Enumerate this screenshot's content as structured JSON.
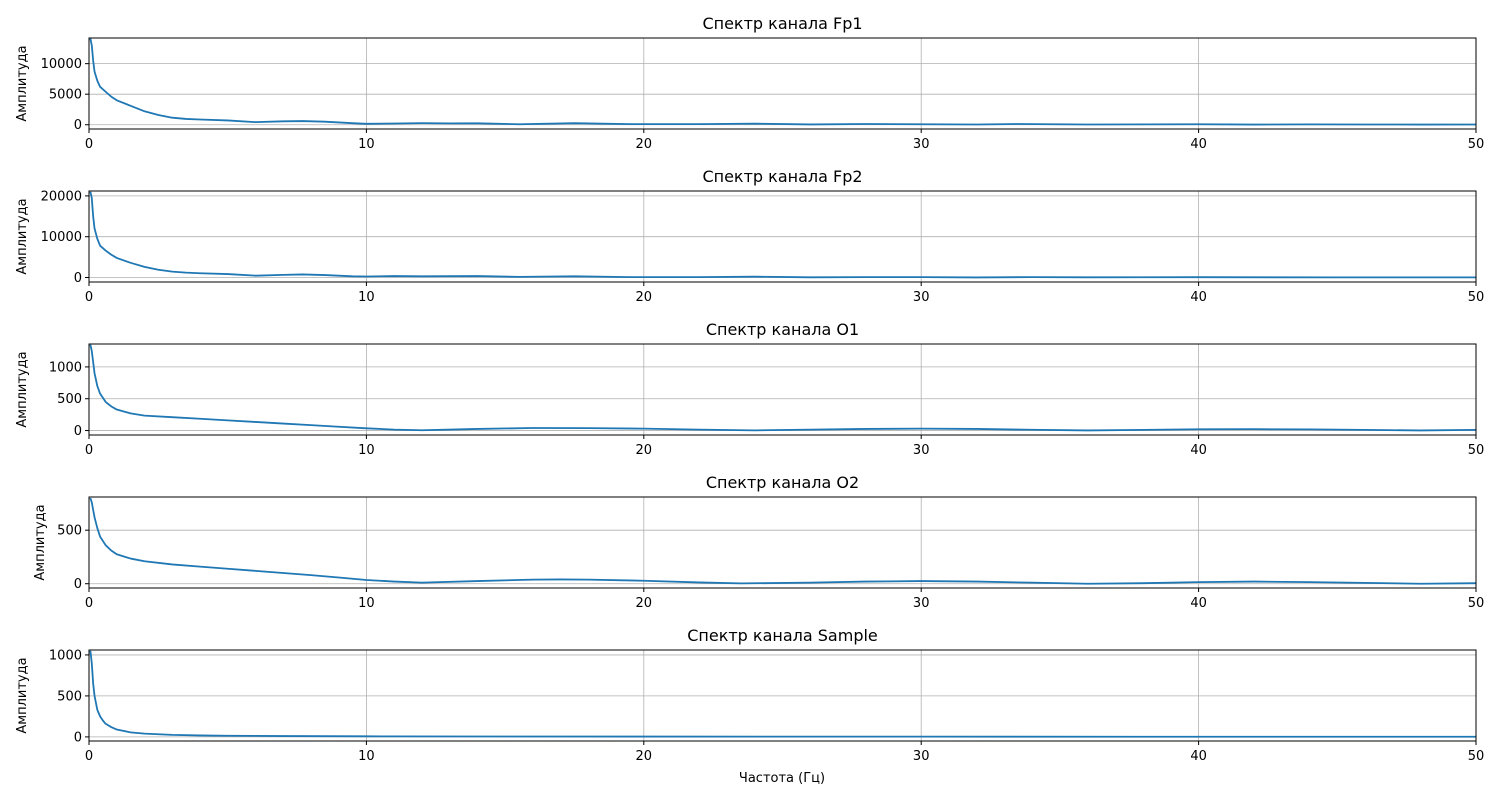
{
  "colors": {
    "line": "#1f77b4",
    "grid": "#b0b0b0"
  },
  "xlabel": "Частота (Гц)",
  "chart_data": [
    {
      "type": "line",
      "title": "Спектр канала Fp1",
      "ylabel": "Амплитуда",
      "xlim": [
        0,
        50
      ],
      "ylim": [
        -700,
        14200
      ],
      "xticks": [
        0,
        10,
        20,
        30,
        40,
        50
      ],
      "yticks": [
        0,
        5000,
        10000
      ],
      "grid": true,
      "x": [
        0.05,
        0.1,
        0.15,
        0.2,
        0.3,
        0.4,
        0.6,
        0.8,
        1.0,
        1.5,
        2.0,
        2.5,
        3.0,
        3.5,
        4.0,
        5.0,
        6.0,
        7.0,
        7.7,
        8.5,
        9.5,
        10.0,
        11.0,
        12.0,
        13.0,
        14.0,
        15.5,
        17.5,
        19.5,
        22.0,
        24.0,
        26.0,
        28.0,
        30.0,
        32.0,
        33.5,
        36.0,
        40.0,
        42.0,
        44.0,
        46.0,
        48.0,
        50.0
      ],
      "y": [
        14100,
        13000,
        10500,
        8700,
        7200,
        6200,
        5400,
        4600,
        4000,
        3100,
        2200,
        1600,
        1150,
        950,
        850,
        700,
        420,
        560,
        600,
        500,
        250,
        150,
        200,
        260,
        220,
        230,
        80,
        250,
        100,
        100,
        180,
        50,
        120,
        80,
        40,
        120,
        40,
        80,
        30,
        60,
        40,
        30,
        40
      ]
    },
    {
      "type": "line",
      "title": "Спектр канала Fp2",
      "ylabel": "Амплитуда",
      "xlim": [
        0,
        50
      ],
      "ylim": [
        -1100,
        21200
      ],
      "xticks": [
        0,
        10,
        20,
        30,
        40,
        50
      ],
      "yticks": [
        0,
        10000,
        20000
      ],
      "grid": true,
      "x": [
        0.05,
        0.1,
        0.15,
        0.2,
        0.3,
        0.4,
        0.6,
        0.8,
        1.0,
        1.5,
        2.0,
        2.5,
        3.0,
        3.5,
        4.0,
        5.0,
        6.0,
        7.0,
        7.7,
        8.5,
        9.5,
        10.0,
        11.0,
        12.0,
        14.0,
        15.5,
        17.5,
        19.5,
        22.0,
        24.0,
        26.0,
        28.0,
        30.0,
        32.0,
        34.0,
        36.0,
        40.0,
        45.0,
        50.0
      ],
      "y": [
        21000,
        19500,
        15000,
        12000,
        9500,
        7800,
        6600,
        5600,
        4800,
        3600,
        2600,
        1900,
        1450,
        1200,
        1050,
        850,
        450,
        650,
        750,
        600,
        300,
        250,
        350,
        300,
        350,
        150,
        300,
        100,
        100,
        200,
        50,
        100,
        100,
        20,
        100,
        50,
        80,
        30,
        30
      ]
    },
    {
      "type": "line",
      "title": "Спектр канала O1",
      "ylabel": "Амплитуда",
      "xlim": [
        0,
        50
      ],
      "ylim": [
        -70,
        1360
      ],
      "xticks": [
        0,
        10,
        20,
        30,
        40,
        50
      ],
      "yticks": [
        0,
        500,
        1000
      ],
      "grid": true,
      "x": [
        0.05,
        0.1,
        0.2,
        0.3,
        0.4,
        0.6,
        0.8,
        1.0,
        1.5,
        2.0,
        3.0,
        4.0,
        5.0,
        6.0,
        7.0,
        8.0,
        9.0,
        10.0,
        11.0,
        12.0,
        14.0,
        16.0,
        18.0,
        20.0,
        22.0,
        24.0,
        26.0,
        28.0,
        30.0,
        32.0,
        34.0,
        36.0,
        38.0,
        40.0,
        42.0,
        44.0,
        46.0,
        48.0,
        50.0
      ],
      "y": [
        1350,
        1250,
        900,
        700,
        580,
        450,
        380,
        330,
        270,
        235,
        210,
        185,
        160,
        135,
        110,
        85,
        60,
        35,
        15,
        5,
        25,
        40,
        38,
        30,
        15,
        3,
        15,
        25,
        30,
        25,
        12,
        2,
        10,
        20,
        22,
        18,
        10,
        2,
        10
      ]
    },
    {
      "type": "line",
      "title": "Спектр канала O2",
      "ylabel": "Амплитуда",
      "xlim": [
        0,
        50
      ],
      "ylim": [
        -40,
        810
      ],
      "xticks": [
        0,
        10,
        20,
        30,
        40,
        50
      ],
      "yticks": [
        0,
        500
      ],
      "grid": true,
      "x": [
        0.05,
        0.1,
        0.2,
        0.3,
        0.4,
        0.6,
        0.8,
        1.0,
        1.5,
        2.0,
        3.0,
        4.0,
        5.0,
        6.0,
        7.0,
        8.0,
        9.0,
        10.0,
        11.0,
        12.0,
        14.0,
        16.0,
        17.0,
        18.0,
        20.0,
        22.0,
        23.5,
        26.0,
        28.0,
        30.0,
        32.0,
        34.0,
        36.0,
        38.0,
        40.0,
        42.0,
        44.0,
        46.0,
        48.0,
        50.0
      ],
      "y": [
        800,
        760,
        620,
        520,
        440,
        360,
        310,
        275,
        235,
        210,
        180,
        160,
        140,
        120,
        100,
        80,
        58,
        35,
        20,
        10,
        25,
        38,
        40,
        38,
        28,
        12,
        3,
        10,
        20,
        25,
        20,
        10,
        0,
        5,
        15,
        20,
        15,
        8,
        0,
        5
      ]
    },
    {
      "type": "line",
      "title": "Спектр канала Sample",
      "ylabel": "Амплитуда",
      "xlim": [
        0,
        50
      ],
      "ylim": [
        -50,
        1060
      ],
      "xticks": [
        0,
        10,
        20,
        30,
        40,
        50
      ],
      "yticks": [
        0,
        500,
        1000
      ],
      "grid": true,
      "x": [
        0.05,
        0.1,
        0.15,
        0.2,
        0.3,
        0.4,
        0.5,
        0.6,
        0.8,
        1.0,
        1.5,
        2.0,
        3.0,
        4.0,
        5.0,
        7.0,
        10.0,
        15.0,
        20.0,
        30.0,
        40.0,
        50.0
      ],
      "y": [
        1050,
        900,
        650,
        500,
        330,
        250,
        200,
        160,
        120,
        90,
        55,
        40,
        25,
        18,
        14,
        10,
        7,
        5,
        4,
        3,
        2,
        2
      ]
    }
  ]
}
